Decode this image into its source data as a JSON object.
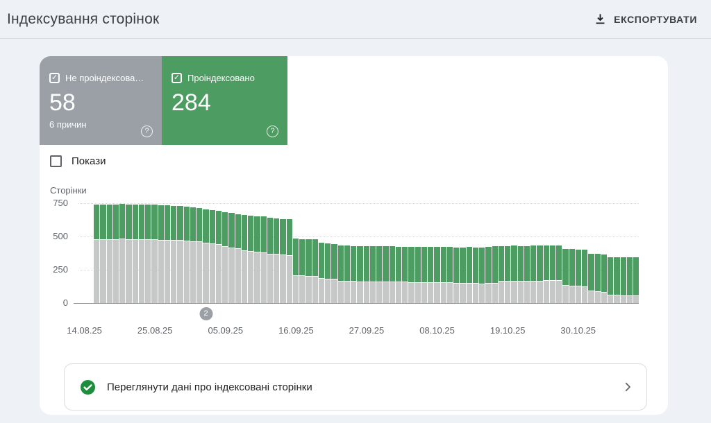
{
  "header": {
    "title": "Індексування сторінок",
    "export_label": "ЕКСПОРТУВАТИ"
  },
  "tiles": {
    "not_indexed": {
      "label": "Не проіндексова…",
      "value": "58",
      "sub": "6 причин",
      "checked": "✓"
    },
    "indexed": {
      "label": "Проіндексовано",
      "value": "284",
      "checked": "✓"
    }
  },
  "controls": {
    "impressions_label": "Покази"
  },
  "chart_data": {
    "type": "bar",
    "stacked": true,
    "ylabel": "Сторінки",
    "ylim": [
      0,
      750
    ],
    "yticks": [
      0,
      250,
      500,
      750
    ],
    "grid": "horizontal-dotted",
    "x_tick_labels": [
      "14.08.25",
      "25.08.25",
      "05.09.25",
      "16.09.25",
      "27.09.25",
      "08.10.25",
      "19.10.25",
      "30.10.25"
    ],
    "x_tick_days": [
      0,
      11,
      22,
      33,
      44,
      55,
      66,
      77
    ],
    "dates": [
      "14.08.25",
      "15.08.25",
      "16.08.25",
      "17.08.25",
      "18.08.25",
      "19.08.25",
      "20.08.25",
      "21.08.25",
      "22.08.25",
      "23.08.25",
      "24.08.25",
      "25.08.25",
      "26.08.25",
      "27.08.25",
      "28.08.25",
      "29.08.25",
      "30.08.25",
      "31.08.25",
      "01.09.25",
      "02.09.25",
      "03.09.25",
      "04.09.25",
      "05.09.25",
      "06.09.25",
      "07.09.25",
      "08.09.25",
      "09.09.25",
      "10.09.25",
      "11.09.25",
      "12.09.25",
      "13.09.25",
      "14.09.25",
      "15.09.25",
      "16.09.25",
      "17.09.25",
      "18.09.25",
      "19.09.25",
      "20.09.25",
      "21.09.25",
      "22.09.25",
      "23.09.25",
      "24.09.25",
      "25.09.25",
      "26.09.25",
      "27.09.25",
      "28.09.25",
      "29.09.25",
      "30.09.25",
      "01.10.25",
      "02.10.25",
      "03.10.25",
      "04.10.25",
      "05.10.25",
      "06.10.25",
      "07.10.25",
      "08.10.25",
      "09.10.25",
      "10.10.25",
      "11.10.25",
      "12.10.25",
      "13.10.25",
      "14.10.25",
      "15.10.25",
      "16.10.25",
      "17.10.25",
      "18.10.25",
      "19.10.25",
      "20.10.25",
      "21.10.25",
      "22.10.25",
      "23.10.25",
      "24.10.25",
      "25.10.25",
      "26.10.25",
      "27.10.25",
      "28.10.25",
      "29.10.25",
      "30.10.25",
      "31.10.25",
      "01.11.25",
      "02.11.25",
      "03.11.25",
      "04.11.25",
      "05.11.25",
      "06.11.25"
    ],
    "series": [
      {
        "name": "Не проіндексовано",
        "color": "#c6c8c7",
        "values": [
          480,
          480,
          481,
          480,
          482,
          481,
          480,
          480,
          479,
          478,
          476,
          475,
          474,
          473,
          468,
          466,
          464,
          452,
          448,
          445,
          425,
          418,
          412,
          396,
          390,
          385,
          382,
          372,
          368,
          365,
          362,
          208,
          206,
          204,
          202,
          188,
          184,
          180,
          168,
          166,
          165,
          164,
          163,
          164,
          163,
          162,
          162,
          161,
          160,
          158,
          157,
          156,
          155,
          156,
          155,
          154,
          153,
          152,
          150,
          149,
          148,
          150,
          152,
          166,
          167,
          168,
          167,
          166,
          167,
          168,
          172,
          173,
          171,
          135,
          130,
          128,
          126,
          92,
          88,
          85,
          62,
          60,
          59,
          58,
          58
        ]
      },
      {
        "name": "Проіндексовано",
        "color": "#4d9c62",
        "values": [
          258,
          260,
          261,
          261,
          261,
          261,
          260,
          261,
          260,
          260,
          258,
          258,
          257,
          257,
          254,
          253,
          252,
          251,
          250,
          249,
          258,
          257,
          256,
          264,
          267,
          268,
          268,
          268,
          268,
          267,
          266,
          275,
          275,
          275,
          275,
          267,
          266,
          265,
          264,
          264,
          264,
          264,
          264,
          264,
          264,
          264,
          263,
          263,
          264,
          265,
          265,
          265,
          265,
          266,
          266,
          266,
          266,
          266,
          270,
          270,
          270,
          274,
          274,
          262,
          262,
          262,
          262,
          262,
          263,
          263,
          260,
          260,
          259,
          273,
          274,
          274,
          274,
          280,
          280,
          280,
          283,
          283,
          283,
          284,
          284
        ]
      }
    ],
    "annotation": {
      "label": "2",
      "date": "31.08.25",
      "day_index": 17
    }
  },
  "footer": {
    "message": "Переглянути дані про індексовані сторінки"
  },
  "colors": {
    "indexed_green": "#4d9c62",
    "not_indexed_gray": "#9aa0a6",
    "bar_gray": "#c6c8c7",
    "check_circle_green": "#1e8e3e",
    "page_background": "#eef1f5"
  }
}
